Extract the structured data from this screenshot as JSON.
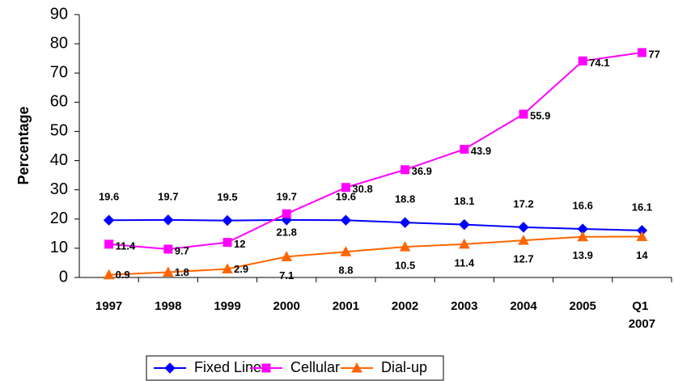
{
  "chart_data": {
    "type": "line",
    "y_label": "Percentage",
    "categories": [
      "1997",
      "1998",
      "1999",
      "2000",
      "2001",
      "2002",
      "2003",
      "2004",
      "2005",
      "Q1 2007"
    ],
    "series": [
      {
        "name": "Fixed Line",
        "color": "#0000ff",
        "marker": "diamond",
        "values": [
          19.6,
          19.7,
          19.5,
          19.7,
          19.6,
          18.8,
          18.1,
          17.2,
          16.6,
          16.1
        ]
      },
      {
        "name": "Cellular",
        "color": "#ff00ff",
        "marker": "square",
        "values": [
          11.4,
          9.7,
          12,
          21.8,
          30.8,
          36.9,
          43.9,
          55.9,
          74.1,
          77
        ]
      },
      {
        "name": "Dial-up",
        "color": "#ff6600",
        "marker": "triangle",
        "values": [
          0.9,
          1.8,
          2.9,
          7.1,
          8.8,
          10.5,
          11.4,
          12.7,
          13.9,
          14
        ]
      }
    ],
    "ylim": [
      0,
      90
    ],
    "yticks": [
      0,
      10,
      20,
      30,
      40,
      50,
      60,
      70,
      80,
      90
    ],
    "legend": "bottom"
  }
}
